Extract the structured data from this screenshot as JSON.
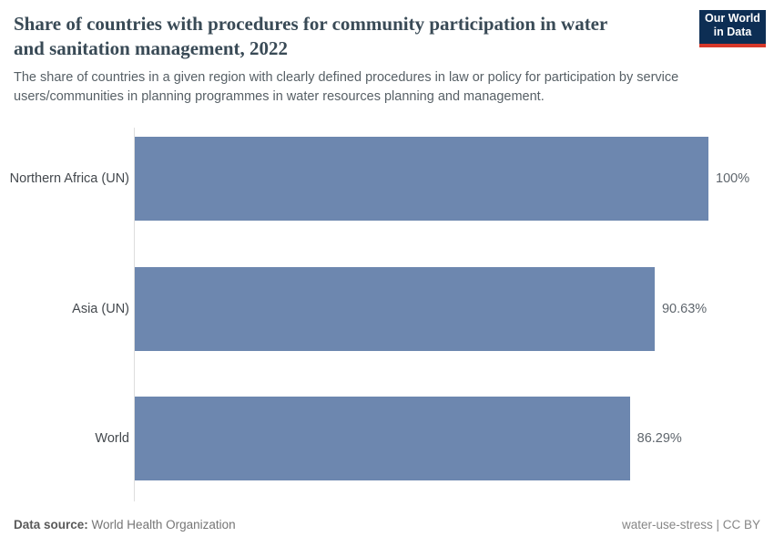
{
  "logo": {
    "line1": "Our World",
    "line2": "in Data",
    "bg_color": "#0d2e54",
    "accent_color": "#d7382a"
  },
  "chart_data": {
    "type": "bar",
    "orientation": "horizontal",
    "title": "Share of countries with procedures for community participation in water and sanitation management, 2022",
    "subtitle": "The share of countries in a given region with clearly defined procedures in law or policy for participation by service users/communities in planning programmes in water resources planning and management.",
    "categories": [
      "Northern Africa (UN)",
      "Asia (UN)",
      "World"
    ],
    "values": [
      100,
      90.63,
      86.29
    ],
    "value_labels": [
      "100%",
      "90.63%",
      "86.29%"
    ],
    "xlim": [
      0,
      100
    ],
    "xlabel": "",
    "ylabel": "",
    "grid": false,
    "legend": false,
    "bar_color": "#6d87af",
    "axis_line_color": "#dedede",
    "label_color": "#43484d",
    "value_label_color": "#5f666d"
  },
  "footer": {
    "source_label": "Data source:",
    "source_value": "World Health Organization",
    "note": "water-use-stress | CC BY"
  }
}
